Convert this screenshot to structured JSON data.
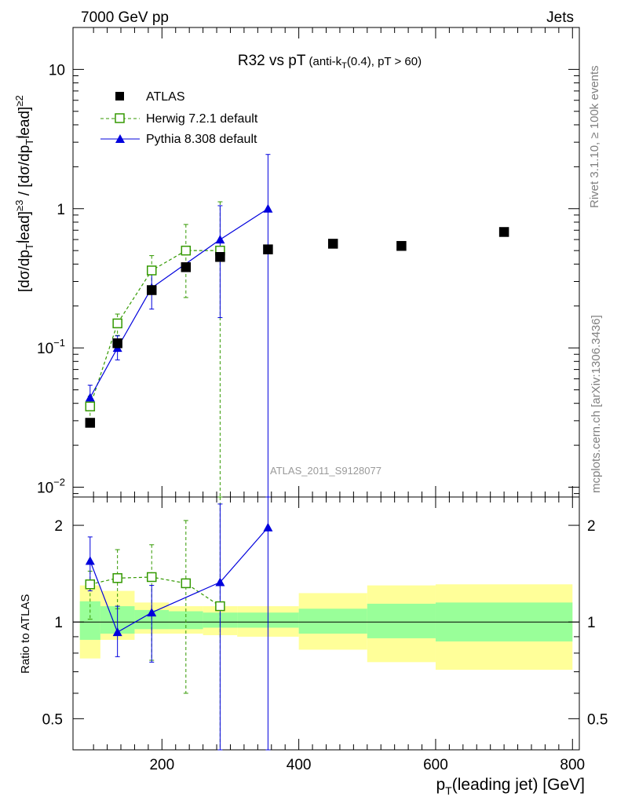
{
  "header": {
    "left": "7000 GeV pp",
    "right": "Jets"
  },
  "side_labels": {
    "rivet": "Rivet 3.1.10, ≥ 100k events",
    "mcplots": "mcplots.cern.ch [arXiv:1306.3436]"
  },
  "chart_data": [
    {
      "type": "scatter",
      "panel": "main",
      "title": "R32 vs pT",
      "subtitle": "(anti-kT(0.4), pT > 60)",
      "ylabel": "[dσ/dp_T^lead]^{≥3} / [dσ/dp_T^lead]^{≥2}",
      "yscale": "log",
      "xlim": [
        70,
        810
      ],
      "ylim": [
        0.0085,
        20
      ],
      "y_ticks": [
        {
          "v": 0.01,
          "base": "10",
          "exp": "−2"
        },
        {
          "v": 0.1,
          "base": "10",
          "exp": "−1"
        },
        {
          "v": 1,
          "base": "1",
          "exp": ""
        },
        {
          "v": 10,
          "base": "10",
          "exp": ""
        }
      ],
      "watermark": "ATLAS_2011_S9128077",
      "legend_position": "top-left",
      "series": [
        {
          "name": "ATLAS",
          "style": "data",
          "color": "#000000",
          "x": [
            95,
            135,
            185,
            235,
            285,
            355,
            450,
            550,
            700
          ],
          "y": [
            0.029,
            0.108,
            0.26,
            0.38,
            0.45,
            0.51,
            0.56,
            0.54,
            0.68
          ]
        },
        {
          "name": "Herwig 7.2.1 default",
          "style": "open-square-dashed",
          "color": "#339900",
          "x": [
            95,
            135,
            185,
            235,
            285
          ],
          "y": [
            0.038,
            0.15,
            0.36,
            0.5,
            0.5
          ],
          "yerr_lo": [
            0.031,
            0.123,
            0.28,
            0.23,
            0.0085
          ],
          "yerr_hi": [
            0.045,
            0.175,
            0.46,
            0.77,
            1.12
          ]
        },
        {
          "name": "Pythia 8.308 default",
          "style": "filled-triangle-solid",
          "color": "#0000dd",
          "x": [
            95,
            135,
            185,
            285,
            355
          ],
          "y": [
            0.044,
            0.1,
            0.27,
            0.6,
            1.0
          ],
          "yerr_lo": [
            0.036,
            0.082,
            0.19,
            0.165,
            0.0085
          ],
          "yerr_hi": [
            0.054,
            0.122,
            0.34,
            1.05,
            2.45
          ]
        }
      ]
    },
    {
      "type": "scatter",
      "panel": "ratio",
      "ylabel": "Ratio to ATLAS",
      "xlabel": "p_T(leading jet) [GeV]",
      "yscale": "log",
      "xlim": [
        70,
        810
      ],
      "ylim": [
        0.4,
        2.45
      ],
      "x_ticks": [
        200,
        400,
        600,
        800
      ],
      "y_ticks": [
        0.5,
        1,
        2
      ],
      "reference_line": 1,
      "bands": [
        {
          "x": [
            80,
            110
          ],
          "y_inner": [
            0.88,
            1.16
          ],
          "y_outer": [
            0.77,
            1.3
          ]
        },
        {
          "x": [
            110,
            160
          ],
          "y_inner": [
            0.92,
            1.12
          ],
          "y_outer": [
            0.88,
            1.25
          ]
        },
        {
          "x": [
            160,
            210
          ],
          "y_inner": [
            0.95,
            1.09
          ],
          "y_outer": [
            0.92,
            1.15
          ]
        },
        {
          "x": [
            210,
            260
          ],
          "y_inner": [
            0.95,
            1.08
          ],
          "y_outer": [
            0.92,
            1.12
          ]
        },
        {
          "x": [
            260,
            310
          ],
          "y_inner": [
            0.96,
            1.07
          ],
          "y_outer": [
            0.91,
            1.12
          ]
        },
        {
          "x": [
            310,
            400
          ],
          "y_inner": [
            0.96,
            1.07
          ],
          "y_outer": [
            0.9,
            1.12
          ]
        },
        {
          "x": [
            400,
            500
          ],
          "y_inner": [
            0.92,
            1.1
          ],
          "y_outer": [
            0.82,
            1.23
          ]
        },
        {
          "x": [
            500,
            600
          ],
          "y_inner": [
            0.89,
            1.14
          ],
          "y_outer": [
            0.75,
            1.3
          ]
        },
        {
          "x": [
            600,
            800
          ],
          "y_inner": [
            0.87,
            1.15
          ],
          "y_outer": [
            0.71,
            1.31
          ]
        }
      ],
      "series": [
        {
          "name": "Herwig 7.2.1 default",
          "color": "#339900",
          "x": [
            95,
            135,
            185,
            235,
            285
          ],
          "y": [
            1.31,
            1.37,
            1.38,
            1.32,
            1.12
          ],
          "yerr_lo": [
            1.02,
            1.1,
            0.76,
            0.6,
            0.4
          ],
          "yerr_hi": [
            1.44,
            1.68,
            1.74,
            2.07,
            2.45
          ]
        },
        {
          "name": "Pythia 8.308 default",
          "color": "#0000dd",
          "x": [
            95,
            135,
            185,
            285,
            355
          ],
          "y": [
            1.55,
            0.93,
            1.07,
            1.33,
            1.97
          ],
          "yerr_lo": [
            1.25,
            0.78,
            0.75,
            0.4,
            0.4
          ],
          "yerr_hi": [
            1.84,
            1.12,
            1.3,
            2.33,
            2.45
          ]
        }
      ]
    }
  ]
}
